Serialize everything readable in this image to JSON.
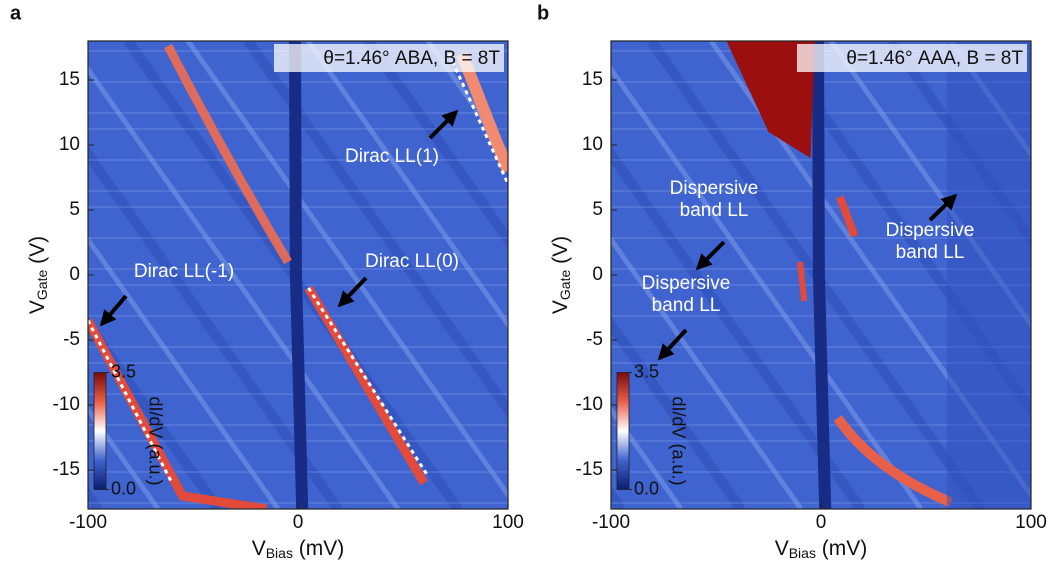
{
  "chart_data": [
    {
      "type": "heatmap",
      "panel": "a",
      "title": "θ=1.46° ABA, B = 8T",
      "x_label": {
        "symbol": "V",
        "subscript": "Bias",
        "unit": " (mV)"
      },
      "y_label": {
        "symbol": "V",
        "subscript": "Gate",
        "unit": " (V)"
      },
      "xlim": [
        -100,
        100
      ],
      "xticks": [
        -100,
        0,
        100
      ],
      "ylim": [
        -18,
        18
      ],
      "yticks": [
        -15,
        -10,
        -5,
        0,
        5,
        10,
        15
      ],
      "colormap": [
        "#0b1e6e",
        "#3f63cf",
        "#ffffff",
        "#e8604a",
        "#7a0a0a"
      ],
      "colorbar": {
        "label": "dI/dV (a.u.)",
        "range": [
          0,
          3.5
        ],
        "ticks": [
          {
            "value": 0,
            "label": "0.0"
          },
          3.5
        ]
      },
      "annotations": [
        {
          "lines": [
            "Dirac LL(1)"
          ]
        },
        {
          "lines": [
            "Dirac LL(0)"
          ]
        },
        {
          "lines": [
            "Dirac LL(-1)"
          ]
        }
      ]
    },
    {
      "type": "heatmap",
      "panel": "b",
      "title": "θ=1.46° AAA, B = 8T",
      "x_label": {
        "symbol": "V",
        "subscript": "Bias",
        "unit": " (mV)"
      },
      "y_label": {
        "symbol": "V",
        "subscript": "Gate",
        "unit": " (V)"
      },
      "xlim": [
        -100,
        100
      ],
      "xticks": [
        -100,
        0,
        100
      ],
      "ylim": [
        -18,
        18
      ],
      "yticks": [
        -15,
        -10,
        -5,
        0,
        5,
        10,
        15
      ],
      "colormap": [
        "#0b1e6e",
        "#3f63cf",
        "#ffffff",
        "#e8604a",
        "#7a0a0a"
      ],
      "colorbar": {
        "label": "dI/dV (a.u.)",
        "range": [
          0,
          3.5
        ],
        "ticks": [
          {
            "value": 0,
            "label": "0.0"
          },
          3.5
        ]
      },
      "annotations": [
        {
          "lines": [
            "Dispersive",
            "band LL"
          ]
        },
        {
          "lines": [
            "Dispersive",
            "band LL"
          ]
        },
        {
          "lines": [
            "Dispersive",
            "band LL"
          ]
        }
      ]
    }
  ]
}
